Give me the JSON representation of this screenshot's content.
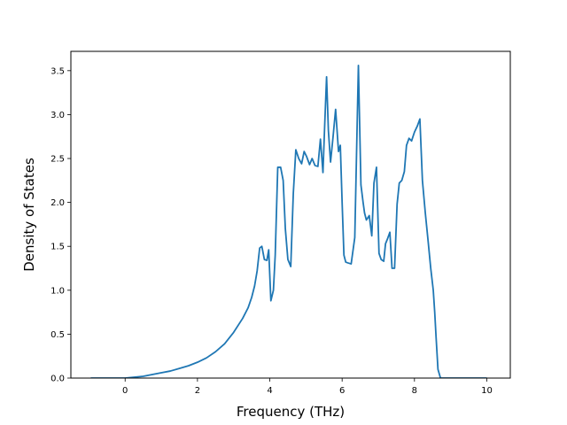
{
  "chart_data": {
    "type": "line",
    "xlabel": "Frequency (THz)",
    "ylabel": "Density of States",
    "xlim": [
      -1.5,
      10.65
    ],
    "ylim": [
      0,
      3.72
    ],
    "xticks": [
      0,
      2,
      4,
      6,
      8,
      10
    ],
    "yticks": [
      0.0,
      0.5,
      1.0,
      1.5,
      2.0,
      2.5,
      3.0,
      3.5
    ],
    "xtick_labels": [
      "0",
      "2",
      "4",
      "6",
      "8",
      "10"
    ],
    "ytick_labels": [
      "0.0",
      "0.5",
      "1.0",
      "1.5",
      "2.0",
      "2.5",
      "3.0",
      "3.5"
    ],
    "grid": false,
    "legend": "none",
    "colors": {
      "line": "#1f77b4"
    },
    "series": [
      {
        "x": [
          -0.95,
          -0.5,
          0.0,
          0.25,
          0.5,
          0.75,
          1.0,
          1.25,
          1.5,
          1.75,
          2.0,
          2.25,
          2.5,
          2.75,
          3.0,
          3.25,
          3.4,
          3.5,
          3.58,
          3.65,
          3.72,
          3.78,
          3.85,
          3.92,
          3.97,
          4.03,
          4.1,
          4.15,
          4.22,
          4.3,
          4.37,
          4.43,
          4.5,
          4.58,
          4.65,
          4.72,
          4.8,
          4.88,
          4.95,
          5.02,
          5.1,
          5.17,
          5.25,
          5.33,
          5.4,
          5.47,
          5.52,
          5.57,
          5.62,
          5.68,
          5.75,
          5.82,
          5.9,
          5.95,
          6.0,
          6.05,
          6.1,
          6.17,
          6.25,
          6.35,
          6.45,
          6.52,
          6.58,
          6.62,
          6.67,
          6.75,
          6.82,
          6.88,
          6.95,
          7.02,
          7.08,
          7.15,
          7.2,
          7.25,
          7.32,
          7.38,
          7.45,
          7.52,
          7.58,
          7.65,
          7.72,
          7.78,
          7.85,
          7.92,
          8.0,
          8.08,
          8.15,
          8.22,
          8.3,
          8.38,
          8.45,
          8.52,
          8.56,
          8.6,
          8.65,
          8.72,
          8.8,
          8.88,
          8.95,
          9.02,
          9.08,
          9.12,
          9.17,
          9.25,
          10.0
        ],
        "y": [
          0.0,
          0.0,
          0.0,
          0.01,
          0.02,
          0.04,
          0.06,
          0.08,
          0.11,
          0.14,
          0.18,
          0.23,
          0.3,
          0.39,
          0.52,
          0.68,
          0.8,
          0.92,
          1.05,
          1.22,
          1.48,
          1.5,
          1.35,
          1.34,
          1.46,
          0.88,
          1.0,
          1.4,
          2.4,
          2.4,
          2.25,
          1.7,
          1.35,
          1.27,
          2.1,
          2.6,
          2.5,
          2.44,
          2.58,
          2.52,
          2.43,
          2.5,
          2.42,
          2.41,
          2.72,
          2.34,
          2.9,
          3.43,
          2.82,
          2.46,
          2.75,
          3.06,
          2.58,
          2.65,
          2.0,
          1.4,
          1.32,
          1.31,
          1.3,
          1.6,
          3.56,
          2.2,
          2.0,
          1.88,
          1.8,
          1.85,
          1.62,
          2.22,
          2.4,
          1.42,
          1.35,
          1.33,
          1.53,
          1.58,
          1.66,
          1.25,
          1.25,
          1.98,
          2.22,
          2.25,
          2.35,
          2.65,
          2.73,
          2.7,
          2.8,
          2.87,
          2.95,
          2.25,
          1.88,
          1.55,
          1.25,
          1.0,
          0.75,
          0.45,
          0.1,
          0.0,
          0.0,
          0.0,
          0.0,
          0.0,
          0.0,
          0.0,
          0.0,
          0.0,
          0.0
        ]
      }
    ]
  }
}
